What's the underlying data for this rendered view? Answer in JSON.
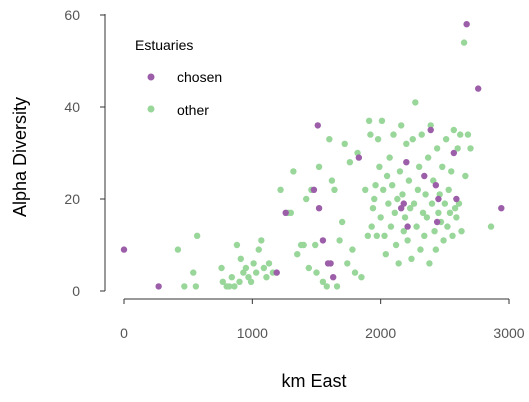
{
  "chart_data": {
    "type": "scatter",
    "xlabel": "km East",
    "ylabel": "Alpha Diversity",
    "xlim": [
      -100,
      3050
    ],
    "ylim": [
      -2,
      61
    ],
    "xticks": [
      0,
      1000,
      2000,
      3000
    ],
    "yticks": [
      0,
      20,
      40,
      60
    ],
    "legend": {
      "title": "Estuaries",
      "position": "top-left"
    },
    "series": [
      {
        "name": "other",
        "color": "#99d69a",
        "points": [
          [
            420,
            9
          ],
          [
            470,
            1
          ],
          [
            540,
            4
          ],
          [
            560,
            1
          ],
          [
            570,
            12
          ],
          [
            760,
            5
          ],
          [
            770,
            2
          ],
          [
            800,
            1
          ],
          [
            820,
            1
          ],
          [
            840,
            3
          ],
          [
            860,
            1
          ],
          [
            880,
            10
          ],
          [
            900,
            2
          ],
          [
            910,
            7
          ],
          [
            930,
            4
          ],
          [
            950,
            5
          ],
          [
            970,
            3
          ],
          [
            990,
            2
          ],
          [
            1010,
            6
          ],
          [
            1030,
            4
          ],
          [
            1050,
            9
          ],
          [
            1070,
            11
          ],
          [
            1090,
            5
          ],
          [
            1110,
            3
          ],
          [
            1130,
            6
          ],
          [
            1160,
            4
          ],
          [
            1220,
            22
          ],
          [
            1280,
            17
          ],
          [
            1300,
            17
          ],
          [
            1320,
            26
          ],
          [
            1350,
            8
          ],
          [
            1380,
            10
          ],
          [
            1400,
            10
          ],
          [
            1420,
            20
          ],
          [
            1440,
            5
          ],
          [
            1460,
            22
          ],
          [
            1490,
            10
          ],
          [
            1500,
            4
          ],
          [
            1520,
            27
          ],
          [
            1550,
            2
          ],
          [
            1580,
            1
          ],
          [
            1600,
            33
          ],
          [
            1620,
            24
          ],
          [
            1640,
            22
          ],
          [
            1660,
            1
          ],
          [
            1680,
            11
          ],
          [
            1700,
            15
          ],
          [
            1720,
            32
          ],
          [
            1740,
            6
          ],
          [
            1760,
            28
          ],
          [
            1780,
            9
          ],
          [
            1800,
            4
          ],
          [
            1820,
            30
          ],
          [
            1850,
            3
          ],
          [
            1880,
            22
          ],
          [
            1900,
            12
          ],
          [
            1910,
            37
          ],
          [
            1920,
            34
          ],
          [
            1930,
            14
          ],
          [
            1940,
            18
          ],
          [
            1950,
            20
          ],
          [
            1960,
            23
          ],
          [
            1970,
            12
          ],
          [
            1980,
            33
          ],
          [
            1990,
            27
          ],
          [
            2000,
            16
          ],
          [
            2010,
            37
          ],
          [
            2020,
            22
          ],
          [
            2030,
            12
          ],
          [
            2040,
            8
          ],
          [
            2050,
            25
          ],
          [
            2060,
            19
          ],
          [
            2070,
            29
          ],
          [
            2080,
            14
          ],
          [
            2090,
            23
          ],
          [
            2100,
            34
          ],
          [
            2110,
            17
          ],
          [
            2120,
            10
          ],
          [
            2130,
            20
          ],
          [
            2140,
            6
          ],
          [
            2150,
            26
          ],
          [
            2160,
            36
          ],
          [
            2170,
            21
          ],
          [
            2180,
            13
          ],
          [
            2190,
            16
          ],
          [
            2200,
            32
          ],
          [
            2210,
            11
          ],
          [
            2220,
            24
          ],
          [
            2230,
            18
          ],
          [
            2240,
            7
          ],
          [
            2250,
            33
          ],
          [
            2260,
            19
          ],
          [
            2270,
            41
          ],
          [
            2280,
            14
          ],
          [
            2290,
            22
          ],
          [
            2300,
            27
          ],
          [
            2310,
            9
          ],
          [
            2320,
            34
          ],
          [
            2330,
            17
          ],
          [
            2340,
            12
          ],
          [
            2350,
            21
          ],
          [
            2360,
            16
          ],
          [
            2370,
            29
          ],
          [
            2380,
            6
          ],
          [
            2390,
            36
          ],
          [
            2400,
            19
          ],
          [
            2410,
            24
          ],
          [
            2420,
            13
          ],
          [
            2430,
            9
          ],
          [
            2440,
            31
          ],
          [
            2450,
            17
          ],
          [
            2460,
            21
          ],
          [
            2470,
            15
          ],
          [
            2480,
            27
          ],
          [
            2490,
            11
          ],
          [
            2500,
            19
          ],
          [
            2510,
            33
          ],
          [
            2520,
            14
          ],
          [
            2530,
            22
          ],
          [
            2540,
            17
          ],
          [
            2550,
            26
          ],
          [
            2560,
            12
          ],
          [
            2570,
            35
          ],
          [
            2580,
            18
          ],
          [
            2590,
            16
          ],
          [
            2600,
            31
          ],
          [
            2610,
            19
          ],
          [
            2620,
            34
          ],
          [
            2630,
            13
          ],
          [
            2650,
            54
          ],
          [
            2660,
            25
          ],
          [
            2680,
            34
          ],
          [
            2700,
            31
          ],
          [
            2860,
            14
          ]
        ]
      },
      {
        "name": "chosen",
        "color": "#9c5ea9",
        "points": [
          [
            0,
            9
          ],
          [
            270,
            1
          ],
          [
            1190,
            4
          ],
          [
            1260,
            17
          ],
          [
            1480,
            22
          ],
          [
            1510,
            36
          ],
          [
            1520,
            18
          ],
          [
            1550,
            11
          ],
          [
            1590,
            6
          ],
          [
            1610,
            6
          ],
          [
            1630,
            3
          ],
          [
            1830,
            29
          ],
          [
            2160,
            18
          ],
          [
            2180,
            19
          ],
          [
            2200,
            28
          ],
          [
            2210,
            14
          ],
          [
            2340,
            25
          ],
          [
            2390,
            35
          ],
          [
            2430,
            23
          ],
          [
            2440,
            15
          ],
          [
            2450,
            20
          ],
          [
            2570,
            30
          ],
          [
            2590,
            20
          ],
          [
            2670,
            58
          ],
          [
            2760,
            44
          ],
          [
            2940,
            18
          ]
        ]
      }
    ]
  }
}
